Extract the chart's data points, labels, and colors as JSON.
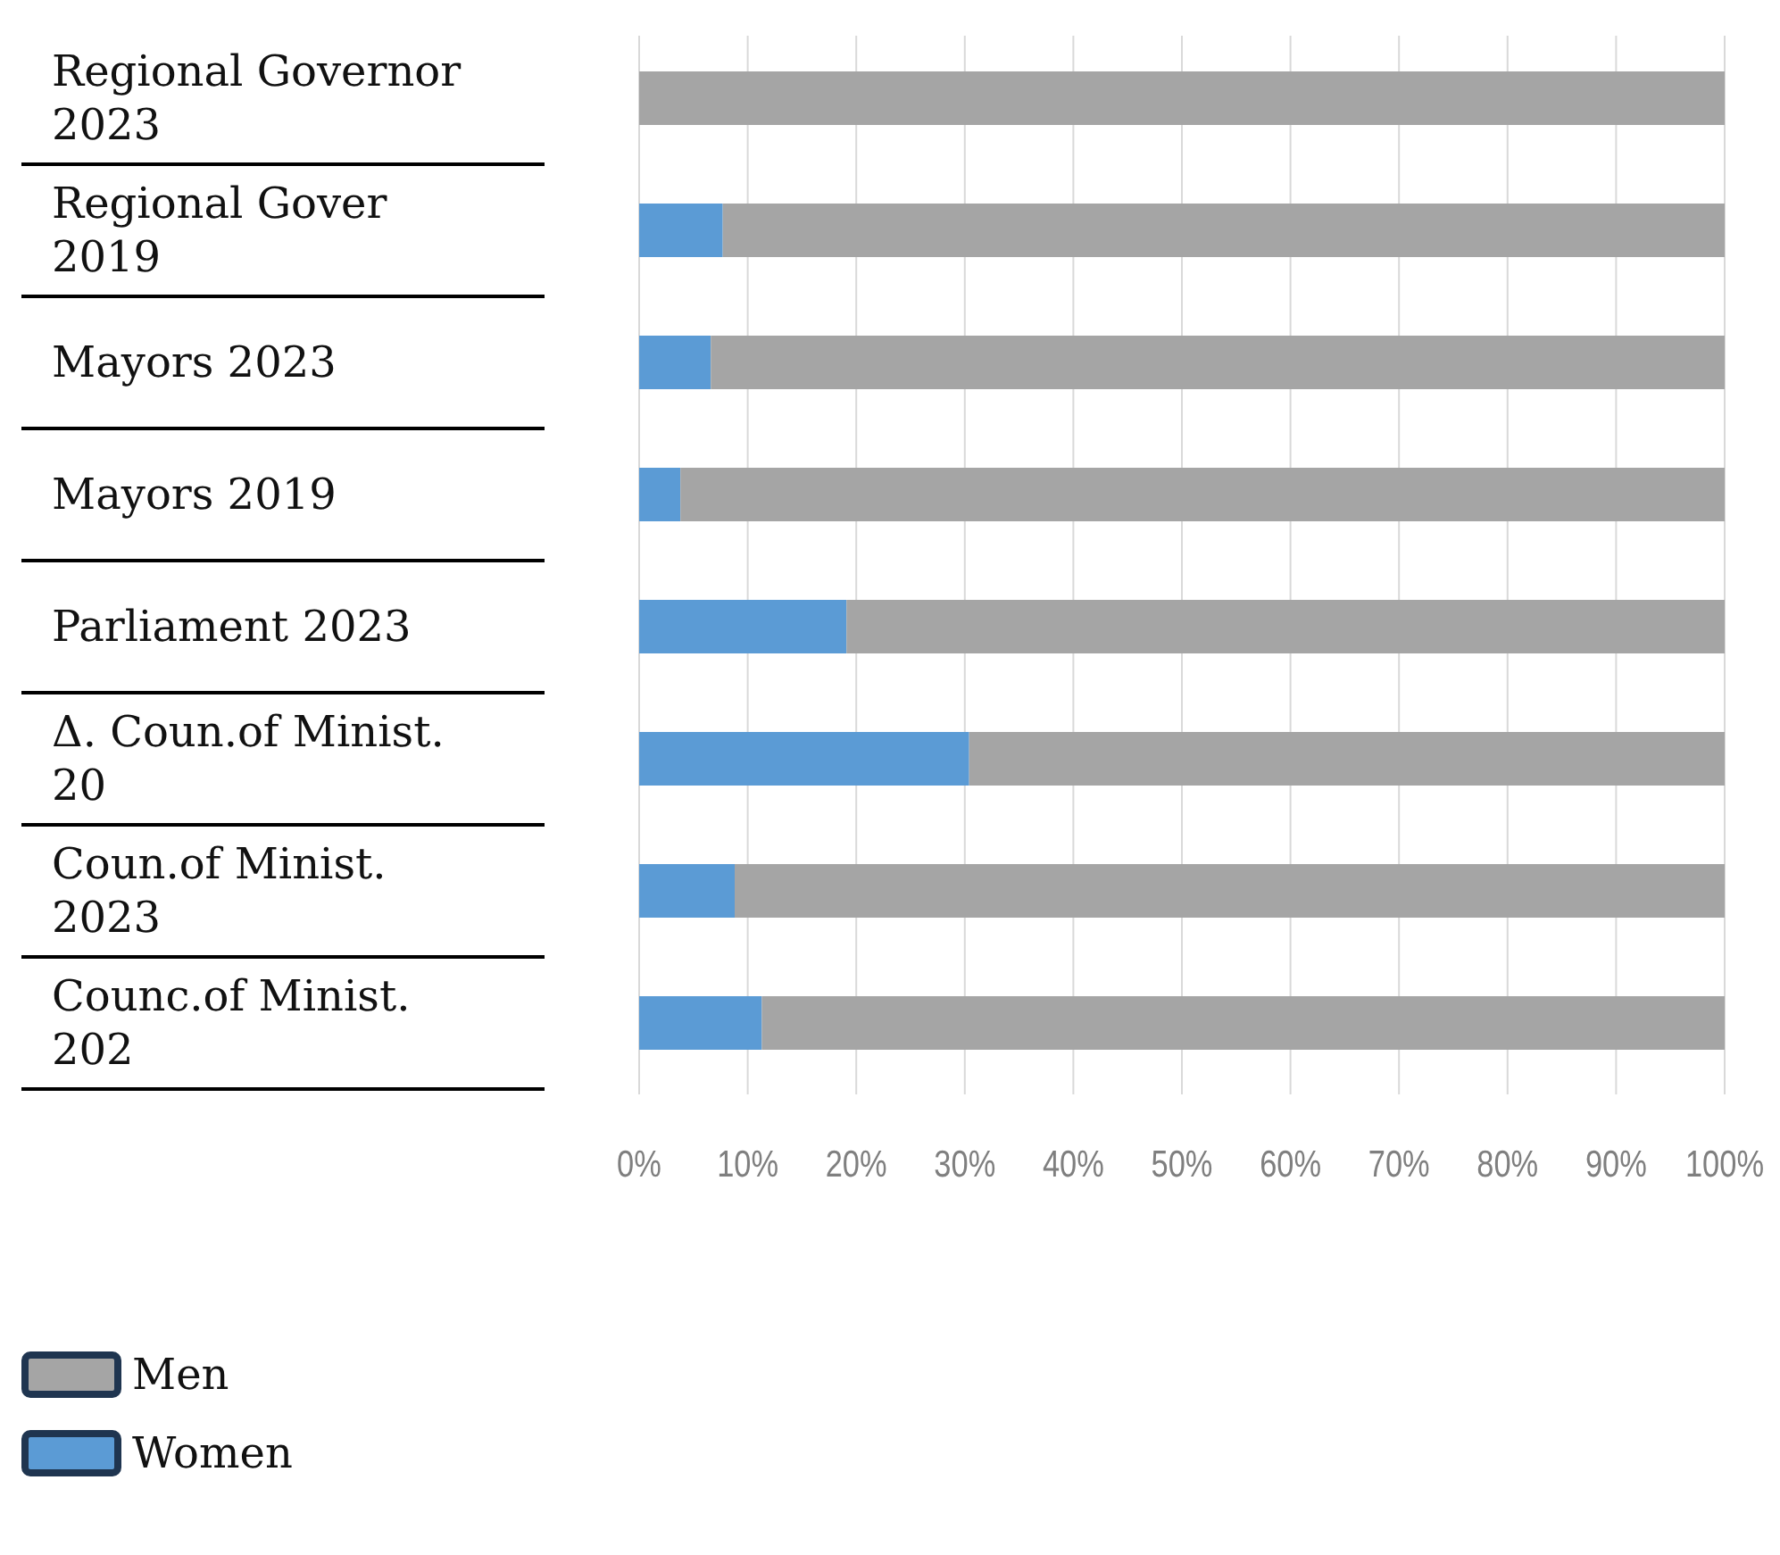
{
  "chart_data": {
    "type": "bar",
    "orientation": "horizontal",
    "stacked": true,
    "categories": [
      "Regional Governor 2023",
      "Regional Gover 2019",
      "Mayors 2023",
      "Mayors 2019",
      "Parliament 2023",
      "Δ. Coun.of Minist. 20",
      "Coun.of Minist. 2023",
      "Counc.of Minist. 202"
    ],
    "series": [
      {
        "name": "Women",
        "color": "#5b9bd5",
        "values": [
          0,
          7.7,
          6.6,
          3.8,
          19.1,
          30.4,
          8.8,
          11.3
        ]
      },
      {
        "name": "Men",
        "color": "#a5a5a5",
        "values": [
          100,
          92.3,
          93.4,
          96.2,
          80.9,
          69.6,
          91.2,
          88.7
        ]
      }
    ],
    "xlim": [
      0,
      100
    ],
    "xticks": [
      {
        "value": 0,
        "label": "0%"
      },
      {
        "value": 10,
        "label": "10%"
      },
      {
        "value": 20,
        "label": "20%"
      },
      {
        "value": 30,
        "label": "30%"
      },
      {
        "value": 40,
        "label": "40%"
      },
      {
        "value": 50,
        "label": "50%"
      },
      {
        "value": 60,
        "label": "60%"
      },
      {
        "value": 70,
        "label": "70%"
      },
      {
        "value": 80,
        "label": "80%"
      },
      {
        "value": 90,
        "label": "90%"
      },
      {
        "value": 100,
        "label": "100%"
      }
    ],
    "grid": "x",
    "legend": "bottom left"
  }
}
